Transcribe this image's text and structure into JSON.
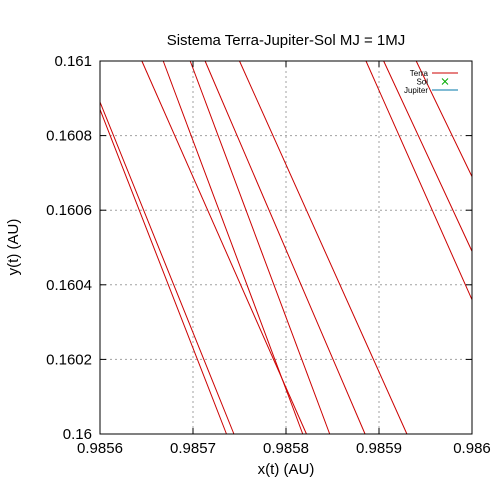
{
  "chart_data": {
    "type": "line",
    "title": "Sistema Terra-Jupiter-Sol MJ = 1MJ",
    "xlabel": "x(t) (AU)",
    "ylabel": "y(t) (AU)",
    "xlim": [
      0.9856,
      0.986
    ],
    "ylim": [
      0.16,
      0.161
    ],
    "grid": true,
    "legend_position": "top-right",
    "x_ticks": [
      "0.9856",
      "0.9857",
      "0.9858",
      "0.9859",
      "0.986"
    ],
    "y_ticks": [
      "0.16",
      "0.1602",
      "0.1604",
      "0.1606",
      "0.1608",
      "0.161"
    ],
    "series": [
      {
        "name": "Terra",
        "color": "#cc0000",
        "marker": "line",
        "segments": [
          [
            [
              0.9856,
              0.16089
            ],
            [
              0.985744,
              0.16
            ]
          ],
          [
            [
              0.9856,
              0.16087
            ],
            [
              0.985736,
              0.16
            ]
          ],
          [
            [
              0.985645,
              0.161
            ],
            [
              0.985822,
              0.16
            ]
          ],
          [
            [
              0.985668,
              0.161
            ],
            [
              0.985818,
              0.16
            ]
          ],
          [
            [
              0.985697,
              0.161
            ],
            [
              0.985847,
              0.16
            ]
          ],
          [
            [
              0.985713,
              0.161
            ],
            [
              0.985885,
              0.16
            ]
          ],
          [
            [
              0.98575,
              0.161
            ],
            [
              0.98593,
              0.16
            ]
          ],
          [
            [
              0.985905,
              0.161
            ],
            [
              0.986,
              0.16049
            ]
          ],
          [
            [
              0.98594,
              0.161
            ],
            [
              0.986,
              0.16069
            ]
          ],
          [
            [
              0.985886,
              0.161
            ],
            [
              0.986,
              0.16036
            ]
          ]
        ]
      },
      {
        "name": "Sol",
        "color": "#00aa00",
        "marker": "x",
        "segments": []
      },
      {
        "name": "Jupiter",
        "color": "#0077aa",
        "marker": "line",
        "segments": []
      }
    ]
  }
}
